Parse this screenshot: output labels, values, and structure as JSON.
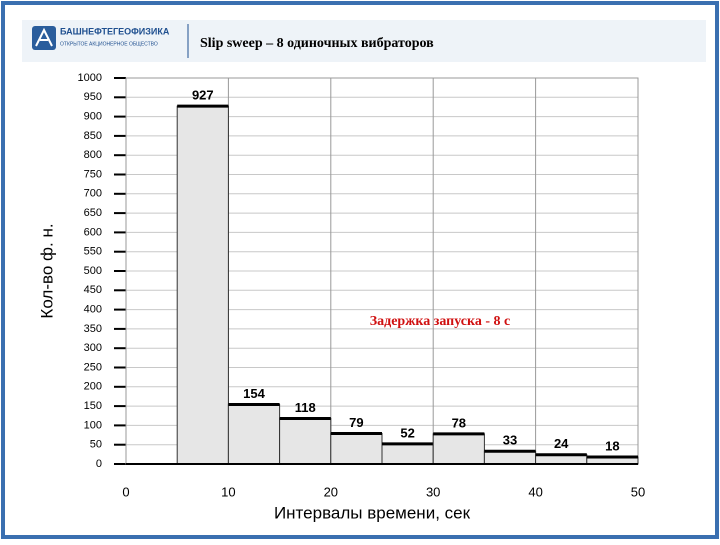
{
  "chart_data": {
    "type": "histogram",
    "logo_name": "БАШНЕФТЕГЕОФИЗИКА",
    "logo_subtitle": "ОТКРЫТОЕ АКЦИОНЕРНОЕ ОБЩЕСТВО",
    "title": "Slip sweep –  8 одиночных вибраторов",
    "annotation": "Задержка запуска - 8 с",
    "x_label": "Интервалы времени, сек",
    "y_label": "Кол-во ф. н.",
    "bins": [
      5,
      10,
      15,
      20,
      25,
      30,
      35,
      40,
      45,
      50
    ],
    "values": [
      927,
      154,
      118,
      79,
      52,
      78,
      33,
      24,
      18
    ],
    "color": "#e6e6e6",
    "xlim": [
      0,
      50
    ],
    "xticks": [
      0,
      10,
      20,
      30,
      40,
      50
    ],
    "ylim": [
      0,
      1000
    ],
    "yticks": [
      0,
      50,
      100,
      150,
      200,
      250,
      300,
      350,
      400,
      450,
      500,
      550,
      600,
      650,
      700,
      750,
      800,
      850,
      900,
      950,
      1000
    ],
    "grid": true
  }
}
